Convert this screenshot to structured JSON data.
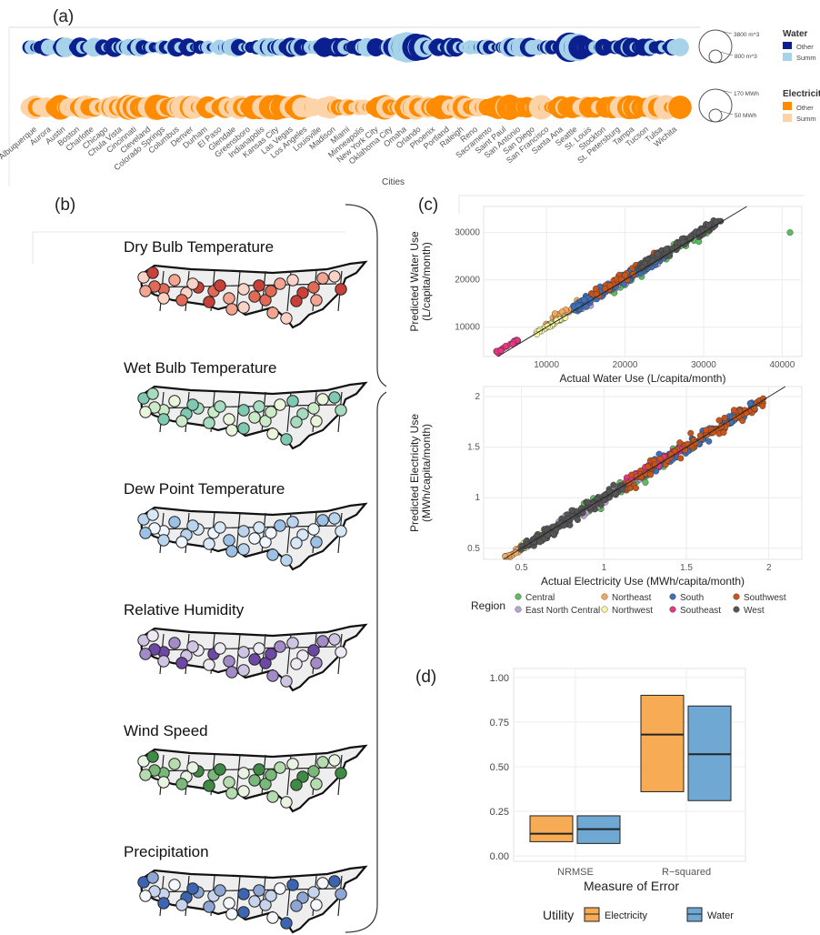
{
  "panels": {
    "a": "(a)",
    "b": "(b)",
    "c": "(c)",
    "d": "(d)"
  },
  "colors": {
    "water_other": "#0b1f8f",
    "water_summer": "#a7d3ea",
    "elec_other": "#ff8c00",
    "elec_summer": "#ffd3a8",
    "nrmse_elec": "#f7ab55",
    "water_box": "#74a9cf"
  },
  "panel_a": {
    "xlabel": "Cities",
    "cities": [
      "Albuquerque",
      "Aurora",
      "Austin",
      "Boston",
      "Charlotte",
      "Chicago",
      "Chula Vista",
      "Cincinnati",
      "Cleveland",
      "Colorado Springs",
      "Columbus",
      "Denver",
      "Durham",
      "El Paso",
      "Glendale",
      "Greensboro",
      "Indianapolis",
      "Kansas City",
      "Las Vegas",
      "Los Angeles",
      "Louisville",
      "Madison",
      "Miami",
      "Minneapolis",
      "New York City",
      "Oklahoma City",
      "Omaha",
      "Orlando",
      "Phoenix",
      "Portland",
      "Raleigh",
      "Reno",
      "Sacramento",
      "Saint Paul",
      "San Antonio",
      "San Diego",
      "San Francisco",
      "Santa Ana",
      "Seattle",
      "St. Louis",
      "Stockton",
      "St. Petersburg",
      "Tampa",
      "Tucson",
      "Tulsa",
      "Wichita"
    ],
    "water_legend": {
      "title": "Water",
      "big": "3800 m^3",
      "small": "800 m^3",
      "items": [
        "Other",
        "Summ"
      ]
    },
    "elec_legend": {
      "title": "Electricity",
      "big": "170 MWh",
      "small": "50 MWh",
      "items": [
        "Other",
        "Summ"
      ]
    }
  },
  "panel_b": {
    "maps": [
      {
        "title": "Dry Bulb Temperature",
        "palette": [
          "#fbd3c6",
          "#f4a592",
          "#e06a56",
          "#c9403a"
        ]
      },
      {
        "title": "Wet Bulb Temperature",
        "palette": [
          "#eaf6dc",
          "#cdeac8",
          "#a6dbc0",
          "#7fc8b2"
        ]
      },
      {
        "title": "Dew Point Temperature",
        "palette": [
          "#f0f6fd",
          "#d8e7f6",
          "#bad4ee",
          "#9dc1e5"
        ]
      },
      {
        "title": "Relative Humidity",
        "palette": [
          "#eeeaf4",
          "#cfc5e2",
          "#a28bc7",
          "#6d48a4"
        ]
      },
      {
        "title": "Wind Speed",
        "palette": [
          "#e8f3e1",
          "#b5dcae",
          "#79b879",
          "#3f8a45"
        ]
      },
      {
        "title": "Precipitation",
        "palette": [
          "#f4f7fc",
          "#c7d5ec",
          "#8ea6d4",
          "#3d64b0"
        ]
      }
    ]
  },
  "chart_data": [
    {
      "type": "scatter",
      "id": "water-scatter",
      "xlabel": "Actual Water Use (L/capita/month)",
      "ylabel": "Predicted Water Use\n(L/capita/month)",
      "xlim": [
        2000,
        42500
      ],
      "ylim": [
        3800,
        35500
      ],
      "xticks": [
        10000,
        20000,
        30000,
        40000
      ],
      "yticks": [
        10000,
        20000,
        30000
      ],
      "grid": true,
      "series": [
        {
          "name": "Central",
          "color": "#5bbd5b",
          "center": [
            24000,
            24000
          ],
          "count": 60,
          "spread": 6000,
          "x": [
            41000
          ],
          "y": [
            30000
          ]
        },
        {
          "name": "East North Central",
          "color": "#b8a4d6",
          "center": [
            19000,
            19000
          ],
          "count": 40,
          "spread": 5000
        },
        {
          "name": "Northeast",
          "color": "#f4a95a",
          "center": [
            15000,
            15500
          ],
          "count": 35,
          "spread": 5000
        },
        {
          "name": "Northwest",
          "color": "#f7f5a0",
          "center": [
            10500,
            10500
          ],
          "count": 40,
          "spread": 2000
        },
        {
          "name": "South",
          "color": "#3f6fb5",
          "center": [
            19500,
            20000
          ],
          "count": 160,
          "spread": 6000
        },
        {
          "name": "Southeast",
          "color": "#e83584",
          "center": [
            5000,
            6000
          ],
          "count": 30,
          "spread": 1300
        },
        {
          "name": "Southwest",
          "color": "#c9541a",
          "center": [
            21000,
            22000
          ],
          "count": 40,
          "spread": 6000
        },
        {
          "name": "West",
          "color": "#555555",
          "center": [
            27000,
            27500
          ],
          "count": 110,
          "spread": 5000
        }
      ]
    },
    {
      "type": "scatter",
      "id": "elec-scatter",
      "xlabel": "Actual Electricity Use (MWh/capita/month)",
      "ylabel": "Predicted Electricity Use\n(MWh/capita/month)",
      "xlim": [
        0.27,
        2.2
      ],
      "ylim": [
        0.39,
        2.1
      ],
      "xticks": [
        0.5,
        1.0,
        1.5,
        2.0
      ],
      "yticks": [
        0.5,
        1.0,
        1.5,
        2.0
      ],
      "grid": true,
      "series": [
        {
          "name": "Central",
          "color": "#5bbd5b",
          "center": [
            1.2,
            1.2
          ],
          "count": 60,
          "spread": 0.35
        },
        {
          "name": "East North Central",
          "color": "#b8a4d6",
          "center": [
            0.9,
            0.9
          ],
          "count": 40,
          "spread": 0.3
        },
        {
          "name": "Northeast",
          "color": "#f4a95a",
          "center": [
            0.55,
            0.55
          ],
          "count": 50,
          "spread": 0.15
        },
        {
          "name": "Northwest",
          "color": "#f7f5a0",
          "center": [
            0.65,
            0.65
          ],
          "count": 40,
          "spread": 0.15
        },
        {
          "name": "South",
          "color": "#3f6fb5",
          "center": [
            1.6,
            1.6
          ],
          "count": 140,
          "spread": 0.35
        },
        {
          "name": "Southeast",
          "color": "#e83584",
          "center": [
            1.3,
            1.32
          ],
          "count": 80,
          "spread": 0.2
        },
        {
          "name": "Southwest",
          "color": "#c9541a",
          "center": [
            1.5,
            1.5
          ],
          "count": 90,
          "spread": 0.45
        },
        {
          "name": "West",
          "color": "#555555",
          "center": [
            0.8,
            0.8
          ],
          "count": 170,
          "spread": 0.3
        }
      ]
    },
    {
      "type": "box",
      "id": "error-box",
      "xlabel": "Measure of Error",
      "ylabel": "",
      "ylim": [
        -0.03,
        1.05
      ],
      "yticks": [
        0.0,
        0.25,
        0.5,
        0.75,
        1.0
      ],
      "ytick_labels": [
        "0.00",
        "0.25",
        "0.50",
        "0.75",
        "1.00"
      ],
      "categories": [
        "NRMSE",
        "R−squared"
      ],
      "legend_title": "Utility",
      "series": [
        {
          "name": "Electricity",
          "color": "#f7ab55",
          "boxes": [
            {
              "q1": 0.08,
              "median": 0.125,
              "q3": 0.225
            },
            {
              "q1": 0.36,
              "median": 0.68,
              "q3": 0.9
            }
          ]
        },
        {
          "name": "Water",
          "color": "#6fa8d2",
          "boxes": [
            {
              "q1": 0.07,
              "median": 0.15,
              "q3": 0.225
            },
            {
              "q1": 0.31,
              "median": 0.57,
              "q3": 0.84
            }
          ]
        }
      ]
    }
  ],
  "region_legend": {
    "title": "Region",
    "items": [
      "Central",
      "East North Central",
      "Northeast",
      "Northwest",
      "South",
      "Southeast",
      "Southwest",
      "West"
    ]
  }
}
